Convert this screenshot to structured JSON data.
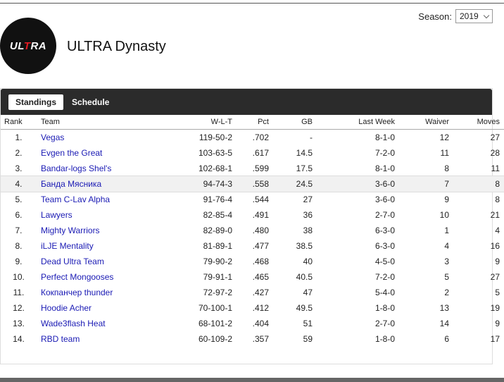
{
  "season": {
    "label": "Season:",
    "selected": "2019"
  },
  "league": {
    "logo_text": "ULTRA",
    "title": "ULTRA Dynasty"
  },
  "tabs": [
    {
      "label": "Standings",
      "active": true
    },
    {
      "label": "Schedule",
      "active": false
    }
  ],
  "table": {
    "headers": {
      "rank": "Rank",
      "team": "Team",
      "wlt": "W-L-T",
      "pct": "Pct",
      "gb": "GB",
      "last_week": "Last Week",
      "waiver": "Waiver",
      "moves": "Moves"
    },
    "rows": [
      {
        "rank": "1.",
        "team": "Vegas",
        "wlt": "119-50-2",
        "pct": ".702",
        "gb": "-",
        "last_week": "8-1-0",
        "waiver": "12",
        "moves": "27"
      },
      {
        "rank": "2.",
        "team": "Evgen the Great",
        "wlt": "103-63-5",
        "pct": ".617",
        "gb": "14.5",
        "last_week": "7-2-0",
        "waiver": "11",
        "moves": "28"
      },
      {
        "rank": "3.",
        "team": "Bandar-logs Shel's",
        "wlt": "102-68-1",
        "pct": ".599",
        "gb": "17.5",
        "last_week": "8-1-0",
        "waiver": "8",
        "moves": "11"
      },
      {
        "rank": "4.",
        "team": "Банда Мясника",
        "wlt": "94-74-3",
        "pct": ".558",
        "gb": "24.5",
        "last_week": "3-6-0",
        "waiver": "7",
        "moves": "8",
        "highlight": true
      },
      {
        "rank": "5.",
        "team": "Team C-Lav Alpha",
        "wlt": "91-76-4",
        "pct": ".544",
        "gb": "27",
        "last_week": "3-6-0",
        "waiver": "9",
        "moves": "8"
      },
      {
        "rank": "6.",
        "team": "Lawyers",
        "wlt": "82-85-4",
        "pct": ".491",
        "gb": "36",
        "last_week": "2-7-0",
        "waiver": "10",
        "moves": "21"
      },
      {
        "rank": "7.",
        "team": "Mighty Warriors",
        "wlt": "82-89-0",
        "pct": ".480",
        "gb": "38",
        "last_week": "6-3-0",
        "waiver": "1",
        "moves": "4"
      },
      {
        "rank": "8.",
        "team": "iLJE Mentality",
        "wlt": "81-89-1",
        "pct": ".477",
        "gb": "38.5",
        "last_week": "6-3-0",
        "waiver": "4",
        "moves": "16"
      },
      {
        "rank": "9.",
        "team": "Dead Ultra Team",
        "wlt": "79-90-2",
        "pct": ".468",
        "gb": "40",
        "last_week": "4-5-0",
        "waiver": "3",
        "moves": "9"
      },
      {
        "rank": "10.",
        "team": "Perfect Mongooses",
        "wlt": "79-91-1",
        "pct": ".465",
        "gb": "40.5",
        "last_week": "7-2-0",
        "waiver": "5",
        "moves": "27"
      },
      {
        "rank": "11.",
        "team": "Кокпанчер thunder",
        "wlt": "72-97-2",
        "pct": ".427",
        "gb": "47",
        "last_week": "5-4-0",
        "waiver": "2",
        "moves": "5"
      },
      {
        "rank": "12.",
        "team": "Hoodie Acher",
        "wlt": "70-100-1",
        "pct": ".412",
        "gb": "49.5",
        "last_week": "1-8-0",
        "waiver": "13",
        "moves": "19"
      },
      {
        "rank": "13.",
        "team": "Wade3flash Heat",
        "wlt": "68-101-2",
        "pct": ".404",
        "gb": "51",
        "last_week": "2-7-0",
        "waiver": "14",
        "moves": "9"
      },
      {
        "rank": "14.",
        "team": "RBD team",
        "wlt": "60-109-2",
        "pct": ".357",
        "gb": "59",
        "last_week": "1-8-0",
        "waiver": "6",
        "moves": "17"
      }
    ]
  },
  "colors": {
    "link": "#1a1ab4",
    "tabbar": "#2b2b2b",
    "logo_bg": "#111111",
    "logo_accent": "#e31b23"
  }
}
